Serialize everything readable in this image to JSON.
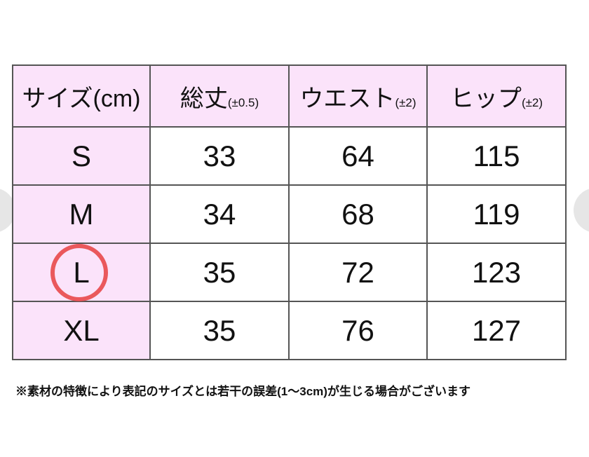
{
  "header": [
    {
      "label": "サイズ(cm)",
      "tolerance": ""
    },
    {
      "label": "総丈",
      "tolerance": "(±0.5)"
    },
    {
      "label": "ウエスト",
      "tolerance": "(±2)"
    },
    {
      "label": "ヒップ",
      "tolerance": "(±2)"
    }
  ],
  "rows": [
    [
      "S",
      "33",
      "64",
      "115"
    ],
    [
      "M",
      "34",
      "68",
      "119"
    ],
    [
      "L",
      "35",
      "72",
      "123"
    ],
    [
      "XL",
      "35",
      "76",
      "127"
    ]
  ],
  "highlighted_size": "L",
  "highlight_color": "#e8484a",
  "header_bg": "#fbe3fa",
  "note": "※素材の特徴により表記のサイズとは若干の誤差(1～3cm)が生じる場合がございます"
}
